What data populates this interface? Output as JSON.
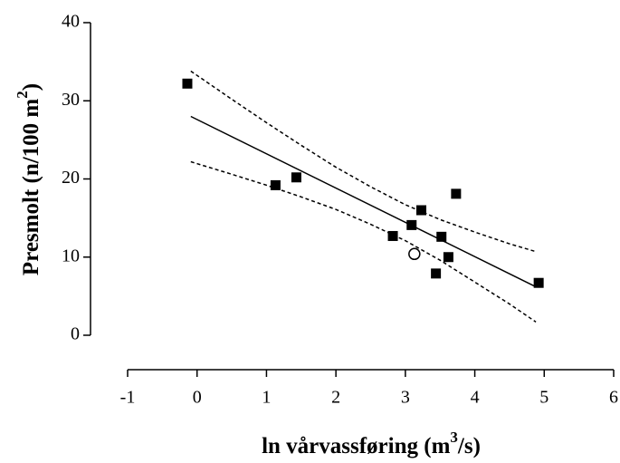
{
  "chart_data": {
    "type": "scatter",
    "xlabel": [
      "ln vårvassføring (m",
      "3",
      "/s)"
    ],
    "ylabel": [
      "Presmolt (n/100 m",
      "2",
      ")"
    ],
    "xlim": [
      -1,
      6
    ],
    "xticks": [
      -1,
      0,
      1,
      2,
      3,
      4,
      5,
      6
    ],
    "ylim": [
      0,
      40
    ],
    "yticks": [
      0,
      10,
      20,
      30,
      40
    ],
    "color": "#000000",
    "series": [
      {
        "marker": "square",
        "x": [
          -0.14,
          1.13,
          1.43,
          2.82,
          3.09,
          3.23,
          3.44,
          3.52,
          3.62,
          3.73,
          4.92
        ],
        "values": [
          32.2,
          19.2,
          20.2,
          12.7,
          14.1,
          16.0,
          7.9,
          12.6,
          10.0,
          18.1,
          6.7
        ]
      },
      {
        "marker": "open-circle",
        "x": [
          3.13
        ],
        "values": [
          10.4
        ]
      },
      {
        "line": "solid",
        "x": [
          -0.09,
          4.88
        ],
        "values": [
          28.0,
          6.2
        ]
      },
      {
        "line": "dashed",
        "x": [
          -0.09,
          0.5,
          1,
          1.5,
          2,
          2.5,
          3,
          3.5,
          4,
          4.5,
          4.88
        ],
        "values": [
          33.8,
          30.2,
          27.2,
          24.3,
          21.5,
          19.0,
          16.7,
          14.8,
          13.2,
          11.7,
          10.7
        ]
      },
      {
        "line": "dashed",
        "x": [
          -0.09,
          0.5,
          1,
          1.5,
          2,
          2.5,
          3,
          3.5,
          4,
          4.5,
          4.88
        ],
        "values": [
          22.2,
          20.6,
          19.2,
          17.7,
          16.1,
          14.2,
          12.1,
          9.6,
          6.8,
          4.0,
          1.7
        ]
      }
    ]
  }
}
